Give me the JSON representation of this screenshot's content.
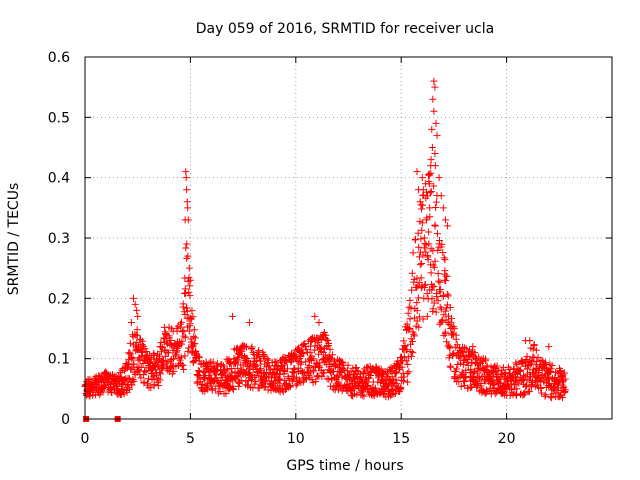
{
  "chart_data": {
    "type": "scatter",
    "title": "Day 059 of 2016, SRMTID for receiver ucla",
    "xlabel": "GPS time / hours",
    "ylabel": "SRMTID / TECUs",
    "xlim": [
      0,
      25
    ],
    "ylim": [
      0,
      0.6
    ],
    "xticks": [
      0,
      5,
      10,
      15,
      20
    ],
    "xtick_labels": [
      "0",
      "5",
      "10",
      "15",
      "20"
    ],
    "yticks": [
      0,
      0.1,
      0.2,
      0.3,
      0.4,
      0.5,
      0.6
    ],
    "ytick_labels": [
      "0",
      "0.1",
      "0.2",
      "0.3",
      "0.4",
      "0.5",
      "0.6"
    ],
    "grid": true,
    "marker": "plus",
    "color": "#ff0000",
    "zero_markers_x": [
      0.05,
      1.55
    ],
    "envelope": {
      "x": [
        0.0,
        0.5,
        1.0,
        1.5,
        2.0,
        2.3,
        2.6,
        3.0,
        3.5,
        3.8,
        4.2,
        4.6,
        4.8,
        5.0,
        5.3,
        5.6,
        6.0,
        6.5,
        7.0,
        7.5,
        8.0,
        8.5,
        9.0,
        9.5,
        10.0,
        10.5,
        11.0,
        11.3,
        11.6,
        12.0,
        12.5,
        13.0,
        13.5,
        14.0,
        14.5,
        15.0,
        15.3,
        15.6,
        15.9,
        16.2,
        16.4,
        16.6,
        16.8,
        17.0,
        17.3,
        17.6,
        18.0,
        18.5,
        19.0,
        19.5,
        20.0,
        20.5,
        21.0,
        21.3,
        21.6,
        22.0,
        22.5,
        22.8
      ],
      "base": [
        0.05,
        0.055,
        0.06,
        0.055,
        0.07,
        0.11,
        0.1,
        0.08,
        0.085,
        0.12,
        0.11,
        0.12,
        0.2,
        0.16,
        0.09,
        0.07,
        0.07,
        0.065,
        0.08,
        0.09,
        0.085,
        0.08,
        0.07,
        0.075,
        0.085,
        0.095,
        0.1,
        0.11,
        0.09,
        0.07,
        0.065,
        0.06,
        0.065,
        0.06,
        0.06,
        0.075,
        0.12,
        0.2,
        0.25,
        0.28,
        0.3,
        0.28,
        0.26,
        0.22,
        0.14,
        0.1,
        0.085,
        0.08,
        0.07,
        0.065,
        0.06,
        0.065,
        0.075,
        0.09,
        0.07,
        0.065,
        0.06,
        0.055
      ],
      "spread": [
        0.015,
        0.015,
        0.02,
        0.015,
        0.03,
        0.05,
        0.04,
        0.03,
        0.03,
        0.04,
        0.04,
        0.05,
        0.1,
        0.05,
        0.03,
        0.025,
        0.025,
        0.025,
        0.035,
        0.035,
        0.035,
        0.03,
        0.025,
        0.03,
        0.03,
        0.035,
        0.04,
        0.04,
        0.035,
        0.03,
        0.025,
        0.025,
        0.025,
        0.025,
        0.025,
        0.03,
        0.06,
        0.09,
        0.1,
        0.12,
        0.12,
        0.11,
        0.1,
        0.08,
        0.05,
        0.04,
        0.035,
        0.03,
        0.03,
        0.025,
        0.025,
        0.03,
        0.035,
        0.035,
        0.03,
        0.03,
        0.025,
        0.02
      ]
    },
    "peaks": [
      {
        "x": [
          2.3,
          2.38,
          2.45,
          2.5,
          2.2
        ],
        "y": [
          0.2,
          0.19,
          0.18,
          0.17,
          0.16
        ]
      },
      {
        "x": [
          4.78,
          4.8,
          4.82,
          4.85,
          4.87,
          4.9,
          4.75,
          4.83,
          4.88,
          4.95,
          5.0,
          4.92
        ],
        "y": [
          0.41,
          0.4,
          0.38,
          0.36,
          0.35,
          0.33,
          0.33,
          0.29,
          0.27,
          0.25,
          0.23,
          0.21
        ]
      },
      {
        "x": [
          15.75,
          15.82,
          15.9,
          16.0,
          16.05,
          16.15,
          16.25,
          16.35,
          16.4,
          16.45,
          16.5,
          16.55,
          16.6,
          16.65,
          16.7,
          16.8,
          16.9,
          17.0,
          17.1,
          17.2,
          16.55,
          16.48,
          16.6,
          16.42,
          16.62,
          16.3,
          16.2,
          16.1
        ],
        "y": [
          0.41,
          0.38,
          0.36,
          0.4,
          0.38,
          0.39,
          0.37,
          0.35,
          0.42,
          0.48,
          0.53,
          0.56,
          0.55,
          0.49,
          0.47,
          0.4,
          0.37,
          0.35,
          0.33,
          0.32,
          0.51,
          0.45,
          0.44,
          0.43,
          0.42,
          0.31,
          0.33,
          0.3
        ]
      },
      {
        "x": [
          7.0,
          7.8,
          10.9,
          11.1,
          18.4,
          20.9,
          21.1,
          22.0
        ],
        "y": [
          0.17,
          0.16,
          0.17,
          0.16,
          0.12,
          0.13,
          0.13,
          0.12
        ]
      }
    ]
  }
}
